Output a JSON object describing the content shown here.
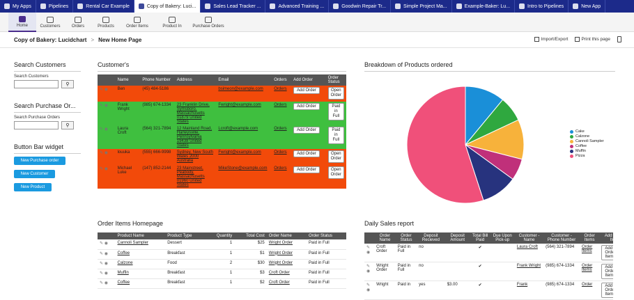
{
  "topbar": {
    "tabs": [
      {
        "label": "My Apps"
      },
      {
        "label": "Pipelines"
      },
      {
        "label": "Rental Car Example"
      },
      {
        "label": "Copy of Bakery: Luci..."
      },
      {
        "label": "Sales Lead Tracker ..."
      },
      {
        "label": "Advanced Training ..."
      },
      {
        "label": "Goodwin Repair Tr..."
      },
      {
        "label": "Simple Project Ma..."
      },
      {
        "label": "Example-Baker: Lu..."
      },
      {
        "label": "Intro to Pipelines"
      },
      {
        "label": "New App"
      }
    ]
  },
  "navbar": {
    "items": [
      {
        "label": "Home"
      },
      {
        "label": "Customers"
      },
      {
        "label": "Orders"
      },
      {
        "label": "Products"
      },
      {
        "label": "Order Items"
      },
      {
        "label": "Product In"
      },
      {
        "label": "Purchase Orders"
      }
    ]
  },
  "breadcrumb": {
    "app": "Copy of Bakery: Lucidchart",
    "sep": ">",
    "page": "New Home Page"
  },
  "actions": {
    "import": "Import/Export",
    "print": "Print this page"
  },
  "sidebar": {
    "search_customers": {
      "title": "Search Customers",
      "label": "Search Customers"
    },
    "search_po": {
      "title": "Search Purchase Or...",
      "label": "Search Purchase Orders"
    },
    "button_bar": {
      "title": "Button Bar widget",
      "buttons": [
        "New Purchase order",
        "New Customer",
        "New Product"
      ]
    }
  },
  "customers": {
    "title": "Customer's",
    "headers": [
      "Name",
      "Phone Number",
      "Address",
      "Email",
      "Orders",
      "Add Order",
      "Order Status"
    ],
    "add_label": "Add Order",
    "rows": [
      {
        "name": "Ben",
        "phone": "(45) 484-5186",
        "address": "",
        "email": "bsimeon@example.com",
        "orders": "Orders",
        "status": "Open Order",
        "color": "#f24a0a"
      },
      {
        "name": "Frank Wright",
        "phone": "(985) 674-1334",
        "address": "23 Franklin Drive, Symsboro, Massachusetts 01879 United States",
        "email": "Fwright@example.com",
        "orders": "Orders",
        "status": "Paid in Full",
        "color": "#3fbf3f"
      },
      {
        "name": "Laura Croft",
        "phone": "(564) 321-7894",
        "address": "12 Mainland Road, Harleysville, Pennsylvania 19438 United States",
        "email": "Lcroft@example.com",
        "orders": "Orders",
        "status": "Paid in Full",
        "color": "#3fbf3f"
      },
      {
        "name": "louuka",
        "phone": "(555) 666-9998",
        "address": "Sydney, New South Wales 2000 Australia",
        "email": "Fwright@example.com",
        "orders": "Orders",
        "status": "Open Order",
        "color": "#f24a0a"
      },
      {
        "name": "Michael Luke",
        "phone": "(147) 852-2144",
        "address": "23 Mainstreet, Peabody, Massachusetts 01960 United States",
        "email": "MikeStone@example.com",
        "orders": "Orders",
        "status": "Open Order",
        "color": "#f24a0a"
      }
    ]
  },
  "order_items": {
    "title": "Order Items Homepage",
    "headers": [
      "Product Name",
      "Product Type",
      "Quantity",
      "Total Cost",
      "Order Name",
      "Order Status"
    ],
    "rows": [
      {
        "product": "Cannoli Sampler",
        "type": "Dessert",
        "qty": "1",
        "cost": "$25",
        "order": "Wright Order",
        "status": "Paid in Full"
      },
      {
        "product": "Coffee",
        "type": "Breakfast",
        "qty": "1",
        "cost": "$1",
        "order": "Wright Order",
        "status": "Paid in Full"
      },
      {
        "product": "Calzone",
        "type": "Food",
        "qty": "2",
        "cost": "$30",
        "order": "Wright Order",
        "status": "Paid in Full"
      },
      {
        "product": "Muffin",
        "type": "Breakfast",
        "qty": "1",
        "cost": "$3",
        "order": "Croft Order",
        "status": "Paid in Full"
      },
      {
        "product": "Coffee",
        "type": "Breakfast",
        "qty": "1",
        "cost": "$2",
        "order": "Croft Order",
        "status": "Paid in Full"
      }
    ]
  },
  "breakdown": {
    "title": "Breakdown of Products ordered"
  },
  "chart_data": {
    "type": "pie",
    "title": "Breakdown of Products ordered",
    "categories": [
      "Cake",
      "Calzone",
      "Cannoli Sampler",
      "Coffee",
      "Muffin",
      "Pizza"
    ],
    "values": [
      11,
      7,
      11,
      6,
      10,
      55
    ],
    "colors": [
      "#1a8fd8",
      "#2fa83f",
      "#f7b23b",
      "#c0307a",
      "#27337e",
      "#f0507a"
    ],
    "legend": "right"
  },
  "daily": {
    "title": "Daily Sales report",
    "headers": [
      "Order Name",
      "Order Status",
      "Deposit Recieved",
      "Deposit Amount",
      "Total Bill Paid",
      "Due Upon Pick-up",
      "Customer - Name",
      "Customer - Phone Number",
      "Order Items",
      "Add Order Item"
    ],
    "rows": [
      {
        "order": "Croft Order",
        "status": "Paid in Full",
        "deposit": "no",
        "amount": "",
        "paid": "✔",
        "due": "",
        "customer": "Laura Croft",
        "phone": "(564) 321-7894",
        "items": "Order Items",
        "add": "Add Order Item"
      },
      {
        "order": "Wright Order",
        "status": "Paid in Full",
        "deposit": "no",
        "amount": "",
        "paid": "✔",
        "due": "",
        "customer": "Frank Wright",
        "phone": "(985) 674-1334",
        "items": "Order Items",
        "add": "Add Order Item"
      },
      {
        "order": "Wright",
        "status": "Paid in",
        "deposit": "yes",
        "amount": "$3.00",
        "paid": "✔",
        "due": "",
        "customer": "Frank",
        "phone": "(985) 674-1334",
        "items": "Order",
        "add": "Add Order Item"
      }
    ]
  }
}
